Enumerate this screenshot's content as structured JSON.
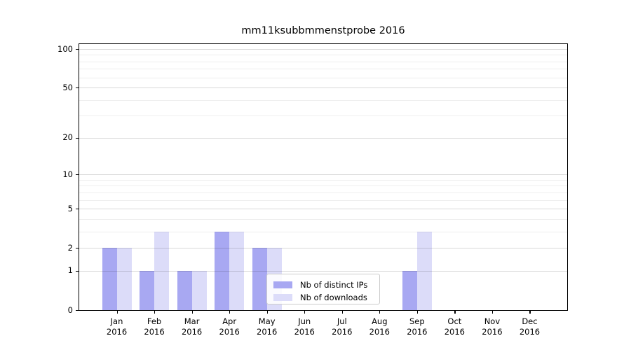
{
  "chart_data": {
    "type": "bar",
    "title": "mm11ksubbmmenstprobe 2016",
    "year_label": "2016",
    "categories": [
      "Jan",
      "Feb",
      "Mar",
      "Apr",
      "May",
      "Jun",
      "Jul",
      "Aug",
      "Sep",
      "Oct",
      "Nov",
      "Dec"
    ],
    "series": [
      {
        "name": "Nb of distinct IPs",
        "color": "#a8a8f2",
        "values": [
          2,
          1,
          1,
          3,
          2,
          0,
          0,
          0,
          1,
          0,
          0,
          0
        ]
      },
      {
        "name": "Nb of downloads",
        "color": "#dcdcf9",
        "values": [
          2,
          3,
          1,
          3,
          2,
          0,
          0,
          0,
          3,
          0,
          0,
          0
        ]
      }
    ],
    "yscale": "log1p",
    "ylim": [
      0,
      110
    ],
    "yticks": [
      0,
      1,
      2,
      5,
      10,
      20,
      50,
      100
    ],
    "minor_gridlines": [
      3,
      4,
      6,
      7,
      8,
      9,
      30,
      40,
      60,
      70,
      80,
      90
    ],
    "grid": "horizontal",
    "legend_position": "lower-center-left",
    "xlabel": "",
    "ylabel": ""
  }
}
